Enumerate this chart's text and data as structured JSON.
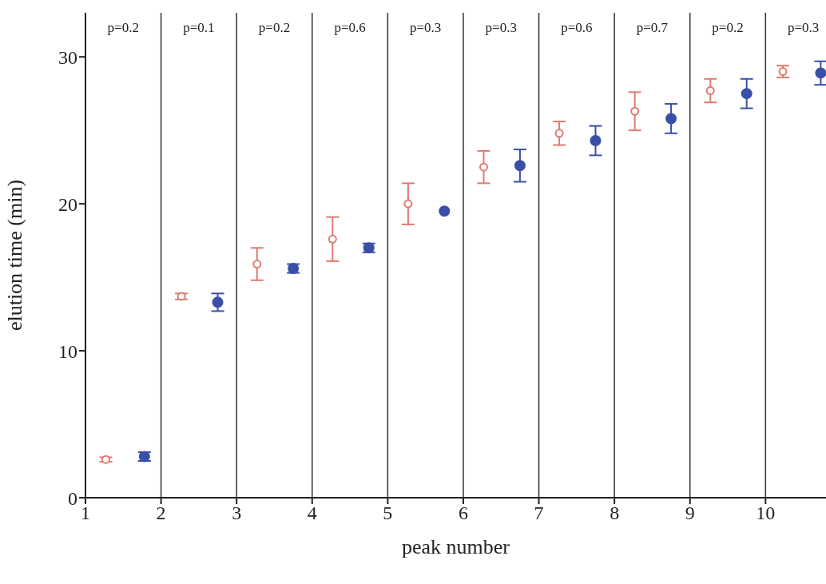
{
  "chart_data": {
    "type": "scatter",
    "xlabel": "peak number",
    "ylabel": "elution time (min)",
    "xlim": [
      1,
      10.8
    ],
    "xticks": [
      1,
      2,
      3,
      4,
      5,
      6,
      7,
      8,
      9,
      10
    ],
    "ylim": [
      0,
      33
    ],
    "yticks": [
      0,
      10,
      20,
      30
    ],
    "grid": false,
    "marker": "circle",
    "series": [
      {
        "color": "#e07a70",
        "x": [
          1.27,
          2.27,
          3.27,
          4.27,
          5.27,
          6.27,
          7.27,
          8.27,
          9.27,
          10.23
        ],
        "values": [
          2.6,
          13.7,
          15.9,
          17.6,
          20.0,
          22.5,
          24.8,
          26.3,
          27.7,
          29.0
        ],
        "errors": [
          0.15,
          0.2,
          1.1,
          1.5,
          1.4,
          1.1,
          0.8,
          1.3,
          0.8,
          0.4
        ]
      },
      {
        "color": "#3a4fa8",
        "x": [
          1.78,
          2.75,
          3.75,
          4.75,
          5.75,
          6.75,
          7.75,
          8.75,
          9.75,
          10.73
        ],
        "values": [
          2.8,
          13.3,
          15.6,
          17.0,
          19.5,
          22.6,
          24.3,
          25.8,
          27.5,
          28.9
        ],
        "errors": [
          0.3,
          0.6,
          0.3,
          0.3,
          null,
          1.1,
          1.0,
          1.0,
          1.0,
          0.8
        ]
      }
    ],
    "ref_lines": [
      {
        "axis": "x",
        "value": 2,
        "color": "#333333"
      },
      {
        "axis": "x",
        "value": 3,
        "color": "#333333"
      },
      {
        "axis": "x",
        "value": 4,
        "color": "#333333"
      },
      {
        "axis": "x",
        "value": 5,
        "color": "#333333"
      },
      {
        "axis": "x",
        "value": 6,
        "color": "#333333"
      },
      {
        "axis": "x",
        "value": 7,
        "color": "#333333"
      },
      {
        "axis": "x",
        "value": 8,
        "color": "#333333"
      },
      {
        "axis": "x",
        "value": 9,
        "color": "#333333"
      },
      {
        "axis": "x",
        "value": 10,
        "color": "#333333"
      }
    ],
    "annotations": [
      "p=0.2",
      "p=0.1",
      "p=0.2",
      "p=0.6",
      "p=0.3",
      "p=0.3",
      "p=0.6",
      "p=0.7",
      "p=0.2",
      "p=0.3"
    ]
  }
}
